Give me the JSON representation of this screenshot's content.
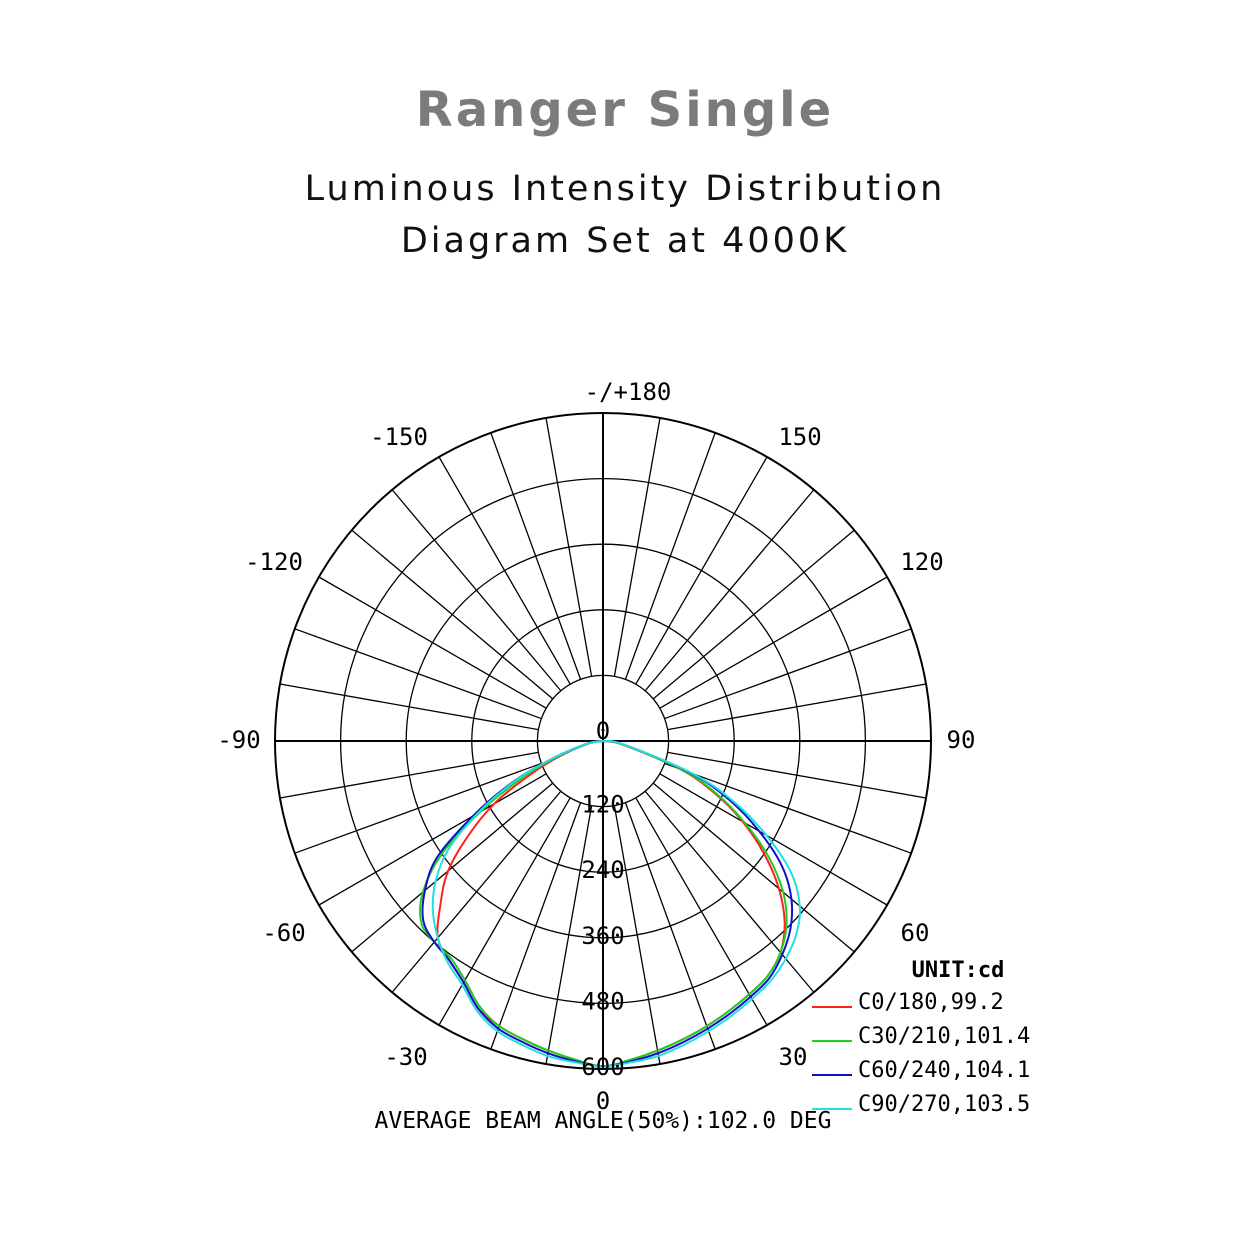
{
  "title": "Ranger Single",
  "subtitle_lines": [
    "Luminous Intensity Distribution",
    "Diagram Set at 4000K"
  ],
  "chart_data": {
    "type": "polar",
    "angle_labels": [
      {
        "angle": 180,
        "text": "-/+180"
      },
      {
        "angle": -150,
        "text": "-150"
      },
      {
        "angle": 150,
        "text": "150"
      },
      {
        "angle": -120,
        "text": "-120"
      },
      {
        "angle": 120,
        "text": "120"
      },
      {
        "angle": -90,
        "text": "-90"
      },
      {
        "angle": 90,
        "text": "90"
      },
      {
        "angle": -60,
        "text": "-60"
      },
      {
        "angle": 60,
        "text": "60"
      },
      {
        "angle": -30,
        "text": "-30"
      },
      {
        "angle": 30,
        "text": "30"
      },
      {
        "angle": 0,
        "text": "0"
      }
    ],
    "radial_ticks": [
      0,
      120,
      240,
      360,
      480,
      600
    ],
    "r_max": 600,
    "unit_label": "UNIT:cd",
    "footer": "AVERAGE BEAM ANGLE(50%):102.0 DEG",
    "series": [
      {
        "name": "C0/180,99.2",
        "color": "#ff2020",
        "angles": [
          -90,
          -80,
          -70,
          -65,
          -60,
          -55,
          -50,
          -45,
          -40,
          -35,
          -30,
          -25,
          -20,
          -15,
          -10,
          -5,
          0,
          5,
          10,
          15,
          20,
          25,
          30,
          35,
          40,
          45,
          50,
          55,
          60,
          65,
          70,
          80,
          90
        ],
        "values": [
          0,
          28,
          90,
          150,
          230,
          300,
          370,
          420,
          470,
          490,
          510,
          540,
          555,
          565,
          575,
          585,
          595,
          585,
          575,
          565,
          555,
          545,
          535,
          525,
          505,
          470,
          420,
          360,
          295,
          225,
          150,
          35,
          0
        ]
      },
      {
        "name": "C30/210,101.4",
        "color": "#22cc22",
        "angles": [
          -90,
          -80,
          -70,
          -65,
          -60,
          -55,
          -50,
          -45,
          -40,
          -35,
          -30,
          -25,
          -20,
          -15,
          -10,
          -5,
          0,
          5,
          10,
          15,
          20,
          25,
          30,
          35,
          40,
          45,
          50,
          55,
          60,
          65,
          70,
          80,
          90
        ],
        "values": [
          0,
          30,
          100,
          170,
          260,
          360,
          430,
          470,
          480,
          485,
          505,
          535,
          555,
          565,
          575,
          585,
          595,
          585,
          575,
          565,
          555,
          545,
          535,
          525,
          505,
          475,
          430,
          370,
          300,
          230,
          155,
          38,
          0
        ]
      },
      {
        "name": "C60/240,104.1",
        "color": "#1010cc",
        "angles": [
          -90,
          -80,
          -70,
          -65,
          -60,
          -55,
          -50,
          -45,
          -40,
          -35,
          -30,
          -25,
          -20,
          -15,
          -10,
          -5,
          0,
          5,
          10,
          15,
          20,
          25,
          30,
          35,
          40,
          45,
          50,
          55,
          60,
          65,
          70,
          80,
          90
        ],
        "values": [
          0,
          32,
          110,
          190,
          275,
          370,
          425,
          465,
          480,
          490,
          510,
          540,
          560,
          570,
          580,
          588,
          595,
          588,
          580,
          570,
          560,
          550,
          540,
          530,
          510,
          485,
          450,
          400,
          330,
          255,
          170,
          40,
          0
        ]
      },
      {
        "name": "C90/270,103.5",
        "color": "#22e0e0",
        "angles": [
          -90,
          -80,
          -70,
          -65,
          -60,
          -55,
          -50,
          -45,
          -40,
          -35,
          -30,
          -25,
          -20,
          -15,
          -10,
          -5,
          0,
          5,
          10,
          15,
          20,
          25,
          30,
          35,
          40,
          45,
          50,
          55,
          60,
          65,
          70,
          80,
          90
        ],
        "values": [
          0,
          32,
          110,
          185,
          265,
          345,
          400,
          440,
          470,
          495,
          515,
          545,
          565,
          575,
          585,
          590,
          595,
          590,
          585,
          575,
          565,
          555,
          545,
          535,
          520,
          500,
          470,
          420,
          345,
          265,
          175,
          40,
          0
        ]
      }
    ]
  }
}
